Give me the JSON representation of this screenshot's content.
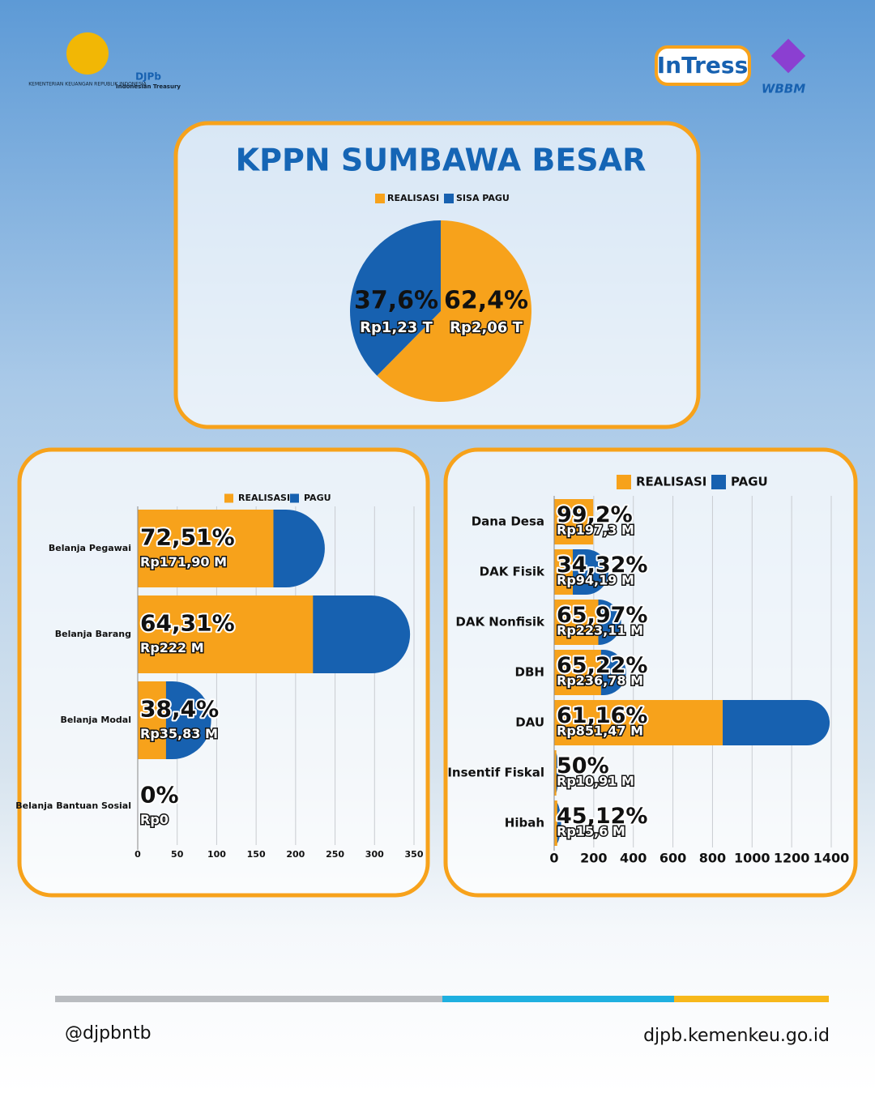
{
  "header": {
    "ministry": "KEMENTERIAN KEUANGAN REPUBLIK INDONESIA",
    "djpb": "DJPb",
    "djpb_sub": "Indonesian Treasury",
    "intress": "InTress",
    "wbbm": "WBBM"
  },
  "chart_data": [
    {
      "type": "pie",
      "title": "KPPN SUMBAWA BESAR",
      "categories": [
        "REALISASI",
        "SISA PAGU"
      ],
      "values": [
        62.4,
        37.6
      ],
      "value_labels": [
        "62,4%",
        "37,6%"
      ],
      "amount_labels": [
        "Rp2,06 T",
        "Rp1,23 T"
      ],
      "colors": [
        "#f7a21b",
        "#1761b0"
      ]
    },
    {
      "type": "barh",
      "categories": [
        "Belanja Pegawai",
        "Belanja Barang",
        "Belanja Modal",
        "Belanja Bantuan Sosial"
      ],
      "series": [
        {
          "name": "REALISASI",
          "color": "#f7a21b",
          "values": [
            171.9,
            222,
            35.83,
            0
          ],
          "value_labels": [
            "Rp171,90 M",
            "Rp222 M",
            "Rp35,83 M",
            "Rp0"
          ]
        },
        {
          "name": "PAGU",
          "color": "#1761b0",
          "values": [
            237,
            345,
            93,
            0
          ]
        }
      ],
      "percent_labels": [
        "72,51%",
        "64,31%",
        "38,4%",
        "0%"
      ],
      "xlim": [
        0,
        350
      ],
      "xticks": [
        0,
        50,
        100,
        150,
        200,
        250,
        300,
        350
      ],
      "grid": true
    },
    {
      "type": "barh",
      "categories": [
        "Dana Desa",
        "DAK Fisik",
        "DAK Nonfisik",
        "DBH",
        "DAU",
        "Insentif Fiskal",
        "Hibah"
      ],
      "series": [
        {
          "name": "REALISASI",
          "color": "#f7a21b",
          "values": [
            197.3,
            94.19,
            223.11,
            236.78,
            851.47,
            10.91,
            15.6
          ],
          "value_labels": [
            "Rp197,3 M",
            "Rp94,19 M",
            "Rp223,11 M",
            "Rp236,78 M",
            "Rp851,47 M",
            "Rp10,91 M",
            "Rp15,6 M"
          ]
        },
        {
          "name": "PAGU",
          "color": "#1761b0",
          "values": [
            199,
            274,
            338,
            363,
            1392,
            22,
            35
          ]
        }
      ],
      "percent_labels": [
        "99,2%",
        "34,32%",
        "65,97%",
        "65,22%",
        "61,16%",
        "50%",
        "45,12%"
      ],
      "xlim": [
        0,
        1400
      ],
      "xticks": [
        0,
        200,
        400,
        600,
        800,
        1000,
        1200,
        1400
      ],
      "grid": true
    }
  ],
  "footer": {
    "handle": "@djpbntb",
    "website": "djpb.kemenkeu.go.id"
  }
}
